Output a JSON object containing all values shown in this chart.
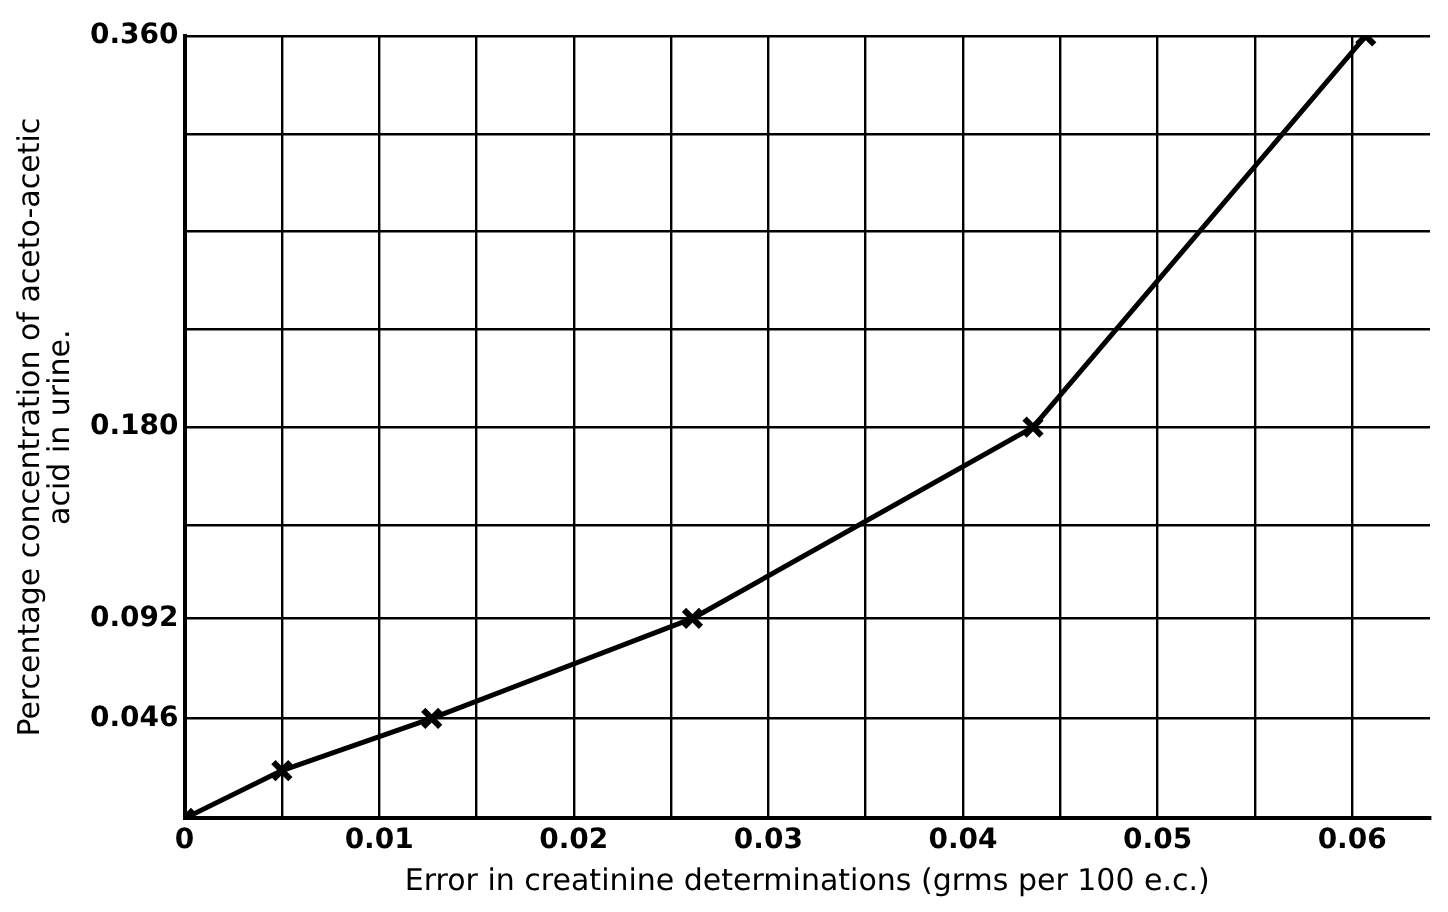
{
  "chart_data": {
    "type": "line",
    "xlabel": "Error in creatinine determinations (grms per 100 e.c.)",
    "ylabel": "Percentage concentration of aceto-acetic\nacid in urine.",
    "x": [
      0,
      0.005,
      0.0127,
      0.0261,
      0.0436,
      0.0607
    ],
    "series": [
      {
        "color": "#000000",
        "values": [
          0,
          0.022,
          0.046,
          0.092,
          0.18,
          0.36
        ]
      }
    ],
    "xlim": [
      0,
      0.064
    ],
    "xticks": [
      0,
      {
        "value": 0.005,
        "label": null
      },
      {
        "value": 0.01,
        "label": "0.01"
      },
      {
        "value": 0.015,
        "label": null
      },
      {
        "value": 0.02,
        "label": "0.02"
      },
      {
        "value": 0.025,
        "label": null
      },
      {
        "value": 0.03,
        "label": "0.03"
      },
      {
        "value": 0.035,
        "label": null
      },
      {
        "value": 0.04,
        "label": "0.04"
      },
      {
        "value": 0.045,
        "label": null
      },
      {
        "value": 0.05,
        "label": "0.05"
      },
      {
        "value": 0.055,
        "label": null
      },
      {
        "value": 0.06,
        "label": "0.06"
      }
    ],
    "ylim": [
      0,
      0.36
    ],
    "yticks": [
      {
        "value": 0,
        "label": null
      },
      {
        "value": 0.046,
        "label": "0.046"
      },
      {
        "value": 0.092,
        "label": "0.092"
      },
      {
        "value": 0.135,
        "label": null
      },
      {
        "value": 0.18,
        "label": "0.180"
      },
      {
        "value": 0.225,
        "label": null
      },
      {
        "value": 0.27,
        "label": null
      },
      {
        "value": 0.315,
        "label": null
      },
      {
        "value": 0.36,
        "label": "0.360"
      }
    ],
    "grid": true,
    "legend": false,
    "marker": "cross",
    "line_style": "solid"
  }
}
